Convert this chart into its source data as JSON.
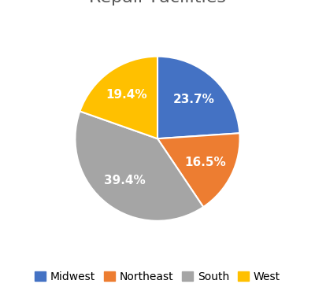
{
  "labels": [
    "Midwest",
    "Northeast",
    "South",
    "West"
  ],
  "values": [
    23.7,
    16.5,
    39.4,
    19.4
  ],
  "colors": [
    "#4472C4",
    "#ED7D31",
    "#A5A5A5",
    "#FFC000"
  ],
  "startangle": 90,
  "title_fontsize": 16,
  "pct_fontsize": 11,
  "legend_fontsize": 10,
  "background_color": "#FFFFFF",
  "title_color": "#595959"
}
